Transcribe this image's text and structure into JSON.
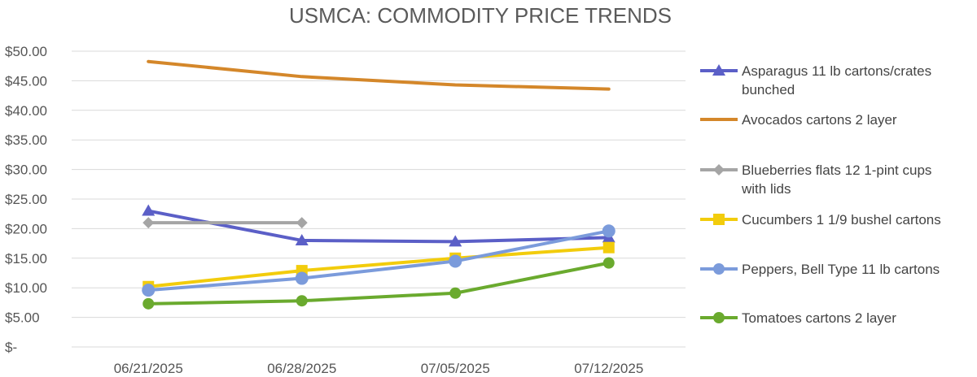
{
  "chart_data": {
    "type": "line",
    "title": "USMCA: COMMODITY PRICE TRENDS",
    "categories": [
      "06/21/2025",
      "06/28/2025",
      "07/05/2025",
      "07/12/2025"
    ],
    "y_tick_labels": [
      "$-",
      "$5.00",
      "$10.00",
      "$15.00",
      "$20.00",
      "$25.00",
      "$30.00",
      "$35.00",
      "$40.00",
      "$45.00",
      "$50.00"
    ],
    "ylim": [
      0,
      50
    ],
    "y_step": 5,
    "grid": "horizontal",
    "legend_position": "right",
    "series": [
      {
        "name": "Asparagus 11 lb cartons/crates bunched",
        "legend_lines": [
          "Asparagus 11 lb cartons/crates",
          "bunched"
        ],
        "color": "#5B5FC7",
        "marker": "triangle",
        "values": [
          23.0,
          18.0,
          17.8,
          18.5
        ]
      },
      {
        "name": "Avocados cartons 2 layer",
        "legend_lines": [
          "Avocados cartons 2 layer"
        ],
        "color": "#D4872A",
        "marker": "none",
        "values": [
          48.25,
          45.7,
          44.3,
          43.6
        ]
      },
      {
        "name": "Blueberries flats 12 1-pint cups with lids",
        "legend_lines": [
          "Blueberries flats 12 1-pint cups",
          "with lids"
        ],
        "color": "#A5A5A5",
        "marker": "diamond",
        "values": [
          21.0,
          21.0,
          null,
          null
        ]
      },
      {
        "name": "Cucumbers 1 1/9 bushel cartons",
        "legend_lines": [
          "Cucumbers 1 1/9 bushel cartons"
        ],
        "color": "#F2CC0C",
        "marker": "square",
        "values": [
          10.2,
          12.9,
          15.0,
          16.8
        ]
      },
      {
        "name": "Peppers, Bell Type 11 lb cartons",
        "legend_lines": [
          "Peppers, Bell Type 11 lb cartons"
        ],
        "color": "#7B9BDB",
        "marker": "circle",
        "values": [
          9.6,
          11.6,
          14.5,
          19.6
        ]
      },
      {
        "name": "Tomatoes cartons 2 layer",
        "legend_lines": [
          "Tomatoes cartons 2 layer"
        ],
        "color": "#6AAA2E",
        "marker": "circle",
        "values": [
          7.3,
          7.8,
          9.1,
          14.2
        ]
      }
    ]
  }
}
